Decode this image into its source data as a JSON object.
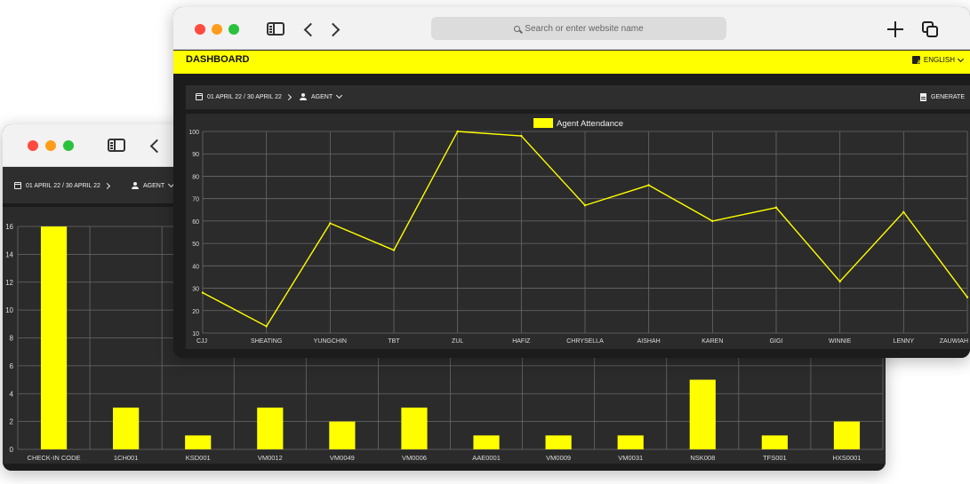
{
  "back_window": {
    "toolbar": {
      "date_range": "01 APRIL 22 / 30 APRIL 22",
      "agent_label": "AGENT"
    },
    "chart_data": {
      "type": "bar",
      "categories": [
        "CHECK-IN CODE",
        "1CH001",
        "KSD001",
        "VM0012",
        "VM0049",
        "VM0006",
        "AAE0001",
        "VM0009",
        "VM0031",
        "NSK008",
        "TFS001",
        "HXS0001"
      ],
      "values": [
        16,
        3,
        1,
        3,
        2,
        3,
        1,
        1,
        1,
        5,
        1,
        2
      ],
      "ylim": [
        0,
        16
      ],
      "yticks": [
        0,
        2,
        4,
        6,
        8,
        10,
        12,
        14,
        16
      ],
      "bar_color": "#ffff00",
      "grid": true
    }
  },
  "front_window": {
    "address_placeholder": "Search or enter website name",
    "app_title": "DASHBOARD",
    "language": "ENGLISH",
    "toolbar": {
      "date_range": "01 APRIL 22 / 30 APRIL 22",
      "agent_label": "AGENT",
      "generate_label": "GENERATE"
    },
    "chart_data": {
      "type": "line",
      "categories": [
        "CJJ",
        "SHEATING",
        "YUNGCHIN",
        "TBT",
        "ZUL",
        "HAFIZ",
        "CHRYSELLA",
        "AISHAH",
        "KAREN",
        "GIGI",
        "WINNIE",
        "LENNY",
        "ZAUWIAH"
      ],
      "series": [
        {
          "name": "Agent Attendance",
          "values": [
            28,
            13,
            59,
            47,
            100,
            98,
            67,
            76,
            60,
            66,
            33,
            64,
            26
          ],
          "color": "#ffff00"
        }
      ],
      "ylim": [
        10,
        100
      ],
      "yticks": [
        10,
        20,
        30,
        40,
        50,
        60,
        70,
        80,
        90,
        100
      ],
      "legend": "top-center",
      "grid": true
    }
  },
  "colors": {
    "accent": "#ffff00",
    "panel": "#2b2b2b",
    "background": "#1c1c1c"
  }
}
